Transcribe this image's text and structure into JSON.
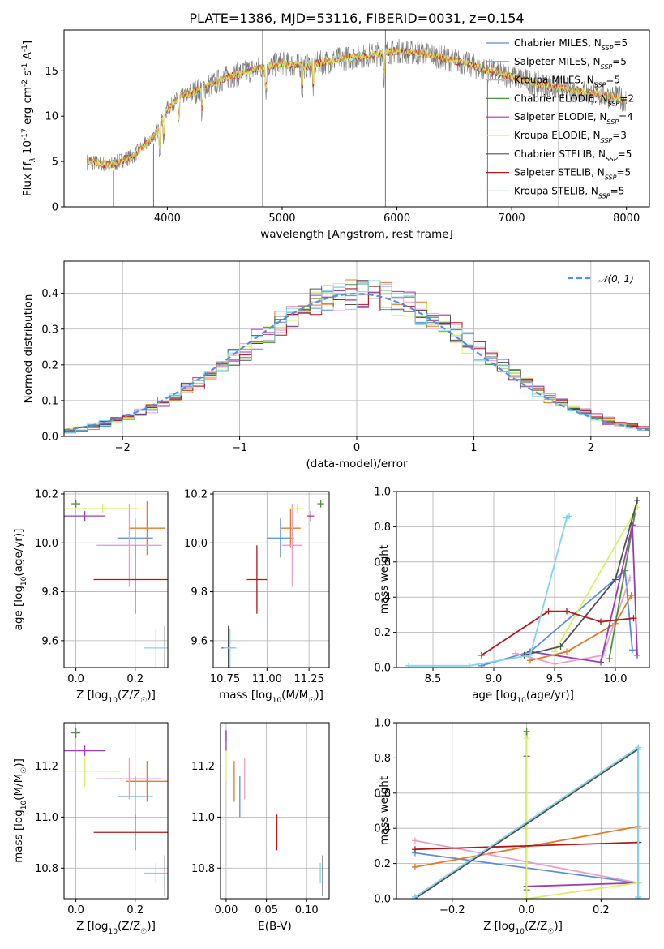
{
  "colors": {
    "Chabrier MILES": "#5b8ed8",
    "Salpeter MILES": "#e07b2a",
    "Kroupa MILES": "#e6a0c8",
    "Chabrier ELODIE": "#4f8f3f",
    "Salpeter ELODIE": "#9a3db0",
    "Kroupa ELODIE": "#d8ef6a",
    "Chabrier STELIB": "#505050",
    "Salpeter STELIB": "#b0181c",
    "Kroupa STELIB": "#80d6e8"
  },
  "chart_data": [
    {
      "id": "spectrum",
      "type": "line",
      "title": "PLATE=1386, MJD=53116, FIBERID=0031, z=0.154",
      "xlabel": "wavelength [Angstrom, rest frame]",
      "ylabel": "Flux [f_λ 10^-17 erg cm^-2 s^-1 A^-1]",
      "xlim": [
        3100,
        8200
      ],
      "ylim": [
        0,
        19.5
      ],
      "xticks": [
        "4000",
        "5000",
        "6000",
        "7000",
        "8000"
      ],
      "yticks": [
        "0",
        "5",
        "10",
        "15"
      ],
      "grid": false,
      "legend_position": "right",
      "legend": [
        {
          "label": "Chabrier MILES, N_SSP=5"
        },
        {
          "label": "Salpeter MILES, N_SSP=5"
        },
        {
          "label": "Kroupa MILES, N_SSP=5"
        },
        {
          "label": "Chabrier ELODIE, N_SSP=2"
        },
        {
          "label": "Salpeter ELODIE, N_SSP=4"
        },
        {
          "label": "Kroupa ELODIE, N_SSP=3"
        },
        {
          "label": "Chabrier STELIB, N_SSP=5"
        },
        {
          "label": "Salpeter STELIB, N_SSP=5"
        },
        {
          "label": "Kroupa STELIB, N_SSP=5"
        }
      ],
      "continuum": {
        "x": [
          3300,
          3500,
          3700,
          3900,
          4000,
          4100,
          4300,
          4500,
          4800,
          5000,
          5200,
          5500,
          5800,
          6000,
          6300,
          6600,
          6800,
          7000,
          7200,
          7500,
          7800,
          8000
        ],
        "y": [
          5.0,
          4.6,
          5.6,
          8.0,
          10.8,
          12.0,
          13.0,
          14.2,
          15.3,
          15.8,
          15.5,
          16.3,
          16.8,
          17.2,
          16.8,
          15.8,
          15.0,
          14.4,
          13.6,
          12.9,
          12.3,
          11.8
        ]
      },
      "spikes": [
        {
          "x": 3530,
          "y0": 0,
          "y1": 4.0
        },
        {
          "x": 3880,
          "y0": 0,
          "y1": 7.0
        },
        {
          "x": 4830,
          "y0": 0,
          "y1": 19.5
        },
        {
          "x": 5900,
          "y0": 0,
          "y1": 19.5
        },
        {
          "x": 6790,
          "y0": 0,
          "y1": 14.0
        },
        {
          "x": 7410,
          "y0": 0,
          "y1": 13.5
        }
      ]
    },
    {
      "id": "residuals",
      "type": "histogram",
      "xlabel": "(data-model)/error",
      "ylabel": "Normed distribution",
      "xlim": [
        -2.5,
        2.5
      ],
      "ylim": [
        0,
        0.49
      ],
      "xticks": [
        "-2",
        "-1",
        "0",
        "1",
        "2"
      ],
      "yticks": [
        "0.0",
        "0.1",
        "0.2",
        "0.3",
        "0.4"
      ],
      "grid": true,
      "legend_position": "upper right",
      "legend_label": "𝒩(0, 1)",
      "bin_width": 0.1,
      "bin_start": -2.5
    },
    {
      "id": "age_vs_Z",
      "type": "errorbar",
      "xlabel": "Z [log10(Z/Z☉)]",
      "ylabel": "age  [log10(age/yr)]",
      "xlim": [
        -0.04,
        0.31
      ],
      "ylim": [
        9.49,
        10.21
      ],
      "xticks": [
        "0.0",
        "0.2"
      ],
      "yticks": [
        "9.6",
        "9.8",
        "10.0",
        "10.2"
      ],
      "grid": true,
      "points": [
        {
          "model": "Chabrier MILES",
          "x": 0.2,
          "xerr": 0.06,
          "y": 10.02,
          "yerr": 0.08
        },
        {
          "model": "Salpeter MILES",
          "x": 0.24,
          "xerr": 0.06,
          "y": 10.06,
          "yerr": 0.11
        },
        {
          "model": "Kroupa MILES",
          "x": 0.18,
          "xerr": 0.11,
          "y": 9.99,
          "yerr": 0.17
        },
        {
          "model": "Chabrier ELODIE",
          "x": 0.0,
          "xerr": 0.015,
          "y": 10.16,
          "yerr": 0.015
        },
        {
          "model": "Salpeter ELODIE",
          "x": 0.03,
          "xerr": 0.07,
          "y": 10.11,
          "yerr": 0.02
        },
        {
          "model": "Kroupa ELODIE",
          "x": 0.09,
          "xerr": 0.12,
          "y": 10.14,
          "yerr": 0.02
        },
        {
          "model": "Chabrier STELIB",
          "x": 0.3,
          "xerr": 0.0,
          "y": 9.57,
          "yerr": 0.09
        },
        {
          "model": "Salpeter STELIB",
          "x": 0.2,
          "xerr": 0.14,
          "y": 9.85,
          "yerr": 0.14
        },
        {
          "model": "Kroupa STELIB",
          "x": 0.27,
          "xerr": 0.04,
          "y": 9.57,
          "yerr": 0.08
        }
      ]
    },
    {
      "id": "age_vs_mass",
      "type": "errorbar",
      "xlabel": "mass [log10(M/M☉)]",
      "ylabel": "",
      "xlim": [
        10.68,
        11.37
      ],
      "ylim": [
        9.49,
        10.21
      ],
      "xticks": [
        "10.75",
        "11.00",
        "11.25"
      ],
      "yticks": [
        "9.6",
        "9.8",
        "10.0",
        "10.2"
      ],
      "grid": true,
      "points": [
        {
          "model": "Chabrier MILES",
          "x": 11.08,
          "xerr": 0.08,
          "y": 10.02,
          "yerr": 0.08
        },
        {
          "model": "Salpeter MILES",
          "x": 11.14,
          "xerr": 0.06,
          "y": 10.06,
          "yerr": 0.08
        },
        {
          "model": "Kroupa MILES",
          "x": 11.15,
          "xerr": 0.06,
          "y": 9.99,
          "yerr": 0.17
        },
        {
          "model": "Chabrier ELODIE",
          "x": 11.32,
          "xerr": 0.02,
          "y": 10.16,
          "yerr": 0.015
        },
        {
          "model": "Salpeter ELODIE",
          "x": 11.26,
          "xerr": 0.02,
          "y": 10.11,
          "yerr": 0.02
        },
        {
          "model": "Kroupa ELODIE",
          "x": 11.18,
          "xerr": 0.04,
          "y": 10.14,
          "yerr": 0.02
        },
        {
          "model": "Chabrier STELIB",
          "x": 10.77,
          "xerr": 0.04,
          "y": 9.57,
          "yerr": 0.09
        },
        {
          "model": "Salpeter STELIB",
          "x": 10.94,
          "xerr": 0.06,
          "y": 9.85,
          "yerr": 0.14
        },
        {
          "model": "Kroupa STELIB",
          "x": 10.78,
          "xerr": 0.04,
          "y": 9.57,
          "yerr": 0.08
        }
      ]
    },
    {
      "id": "weight_vs_age",
      "type": "line",
      "xlabel": "age  [log10(age/yr)]",
      "ylabel": "mass weight",
      "xlim": [
        8.2,
        10.28
      ],
      "ylim": [
        0,
        1.0
      ],
      "xticks": [
        "8.5",
        "9.0",
        "9.5",
        "10.0"
      ],
      "yticks": [
        "0.0",
        "0.2",
        "0.4",
        "0.6",
        "0.8",
        "1.0"
      ],
      "grid": true,
      "series": [
        {
          "model": "Chabrier MILES",
          "x": [
            8.9,
            9.3,
            10.08,
            10.14
          ],
          "y": [
            0.01,
            0.09,
            0.55,
            0.1
          ]
        },
        {
          "model": "Salpeter MILES",
          "x": [
            9.3,
            9.6,
            10.0,
            10.13
          ],
          "y": [
            0.04,
            0.09,
            0.25,
            0.41
          ]
        },
        {
          "model": "Kroupa MILES",
          "x": [
            9.18,
            9.5,
            9.9,
            10.12
          ],
          "y": [
            0.08,
            0.02,
            0.07,
            0.51
          ]
        },
        {
          "model": "Chabrier ELODIE",
          "x": [
            9.95,
            10.18
          ],
          "y": [
            0.05,
            0.95
          ]
        },
        {
          "model": "Salpeter ELODIE",
          "x": [
            9.3,
            9.88,
            10.14,
            10.18
          ],
          "y": [
            0.09,
            0.03,
            0.81,
            0.07
          ]
        },
        {
          "model": "Kroupa ELODIE",
          "x": [
            9.5,
            10.18
          ],
          "y": [
            0.09,
            0.91
          ]
        },
        {
          "model": "Chabrier STELIB",
          "x": [
            9.25,
            9.55,
            10.0,
            10.18
          ],
          "y": [
            0.07,
            0.12,
            0.5,
            0.95
          ]
        },
        {
          "model": "Salpeter STELIB",
          "x": [
            8.9,
            9.45,
            9.6,
            9.88,
            10.15
          ],
          "y": [
            0.07,
            0.32,
            0.32,
            0.26,
            0.28
          ]
        },
        {
          "model": "Kroupa STELIB",
          "x": [
            8.3,
            8.8,
            9.3,
            9.6,
            9.62
          ],
          "y": [
            0.01,
            0.01,
            0.07,
            0.85,
            0.86
          ]
        }
      ]
    },
    {
      "id": "mass_vs_Z",
      "type": "errorbar",
      "xlabel": "Z [log10(Z/Z☉)]",
      "ylabel": "mass [log10(M/M☉)]",
      "xlim": [
        -0.04,
        0.31
      ],
      "ylim": [
        10.68,
        11.37
      ],
      "xticks": [
        "0.0",
        "0.2"
      ],
      "yticks": [
        "10.8",
        "11.0",
        "11.2"
      ],
      "grid": true,
      "points": [
        {
          "model": "Chabrier MILES",
          "x": 0.2,
          "xerr": 0.06,
          "y": 11.08,
          "yerr": 0.08
        },
        {
          "model": "Salpeter MILES",
          "x": 0.24,
          "xerr": 0.07,
          "y": 11.14,
          "yerr": 0.08
        },
        {
          "model": "Kroupa MILES",
          "x": 0.18,
          "xerr": 0.11,
          "y": 11.15,
          "yerr": 0.08
        },
        {
          "model": "Chabrier ELODIE",
          "x": 0.0,
          "xerr": 0.015,
          "y": 11.33,
          "yerr": 0.02
        },
        {
          "model": "Salpeter ELODIE",
          "x": 0.03,
          "xerr": 0.07,
          "y": 11.26,
          "yerr": 0.02
        },
        {
          "model": "Kroupa ELODIE",
          "x": 0.03,
          "xerr": 0.12,
          "y": 11.18,
          "yerr": 0.06
        },
        {
          "model": "Chabrier STELIB",
          "x": 0.3,
          "xerr": 0.0,
          "y": 10.77,
          "yerr": 0.08
        },
        {
          "model": "Salpeter STELIB",
          "x": 0.2,
          "xerr": 0.14,
          "y": 10.94,
          "yerr": 0.07
        },
        {
          "model": "Kroupa STELIB",
          "x": 0.27,
          "xerr": 0.04,
          "y": 10.78,
          "yerr": 0.04
        }
      ]
    },
    {
      "id": "mass_vs_ebv",
      "type": "errorbar",
      "xlabel": "E(B-V)",
      "ylabel": "",
      "xlim": [
        -0.007,
        0.128
      ],
      "ylim": [
        10.68,
        11.37
      ],
      "xticks": [
        "0.00",
        "0.05",
        "0.10"
      ],
      "yticks": [
        "10.8",
        "11.0",
        "11.2"
      ],
      "grid": true,
      "points": [
        {
          "model": "Chabrier MILES",
          "x": 0.017,
          "xerr": 0.0,
          "y": 11.08,
          "yerr": 0.08
        },
        {
          "model": "Salpeter MILES",
          "x": 0.01,
          "xerr": 0.0,
          "y": 11.14,
          "yerr": 0.08
        },
        {
          "model": "Kroupa MILES",
          "x": 0.023,
          "xerr": 0.0,
          "y": 11.15,
          "yerr": 0.08
        },
        {
          "model": "Chabrier ELODIE",
          "x": 0.0,
          "xerr": 0.0,
          "y": 11.32,
          "yerr": 0.02
        },
        {
          "model": "Salpeter ELODIE",
          "x": 0.0,
          "xerr": 0.0,
          "y": 11.3,
          "yerr": 0.04
        },
        {
          "model": "Kroupa ELODIE",
          "x": 0.0,
          "xerr": 0.0,
          "y": 11.2,
          "yerr": 0.06
        },
        {
          "model": "Chabrier STELIB",
          "x": 0.12,
          "xerr": 0.0,
          "y": 10.77,
          "yerr": 0.08
        },
        {
          "model": "Salpeter STELIB",
          "x": 0.063,
          "xerr": 0.0,
          "y": 10.94,
          "yerr": 0.07
        },
        {
          "model": "Kroupa STELIB",
          "x": 0.117,
          "xerr": 0.0,
          "y": 10.78,
          "yerr": 0.04
        }
      ]
    },
    {
      "id": "weight_vs_Z",
      "type": "line",
      "xlabel": "Z [log10(Z/Z☉)]",
      "ylabel": "mass weight",
      "xlim": [
        -0.35,
        0.33
      ],
      "ylim": [
        0,
        1.0
      ],
      "xticks": [
        "-0.2",
        "0.0",
        "0.2"
      ],
      "yticks": [
        "0.0",
        "0.2",
        "0.4",
        "0.6",
        "0.8",
        "1.0"
      ],
      "grid": true,
      "series": [
        {
          "model": "Chabrier MILES",
          "x": [
            -0.3,
            0.3
          ],
          "y": [
            0.26,
            0.09
          ]
        },
        {
          "model": "Salpeter MILES",
          "x": [
            -0.3,
            0.3
          ],
          "y": [
            0.18,
            0.41
          ]
        },
        {
          "model": "Kroupa MILES",
          "x": [
            -0.3,
            0.3
          ],
          "y": [
            0.33,
            0.09
          ]
        },
        {
          "model": "Chabrier ELODIE",
          "x": [
            0.0,
            0.0
          ],
          "y": [
            0.05,
            0.95
          ]
        },
        {
          "model": "Salpeter ELODIE",
          "x": [
            0.0,
            0.0,
            0.3
          ],
          "y": [
            0.81,
            0.07,
            0.09
          ]
        },
        {
          "model": "Kroupa ELODIE",
          "x": [
            0.0,
            0.0,
            0.3
          ],
          "y": [
            0.91,
            0.0,
            0.09
          ]
        },
        {
          "model": "Chabrier STELIB",
          "x": [
            -0.3,
            0.3,
            0.3
          ],
          "y": [
            0.0,
            0.85,
            0.0
          ]
        },
        {
          "model": "Salpeter STELIB",
          "x": [
            -0.3,
            0.3
          ],
          "y": [
            0.28,
            0.32
          ]
        },
        {
          "model": "Kroupa STELIB",
          "x": [
            -0.3,
            0.3,
            0.3
          ],
          "y": [
            0.01,
            0.86,
            0.01
          ]
        }
      ]
    }
  ]
}
